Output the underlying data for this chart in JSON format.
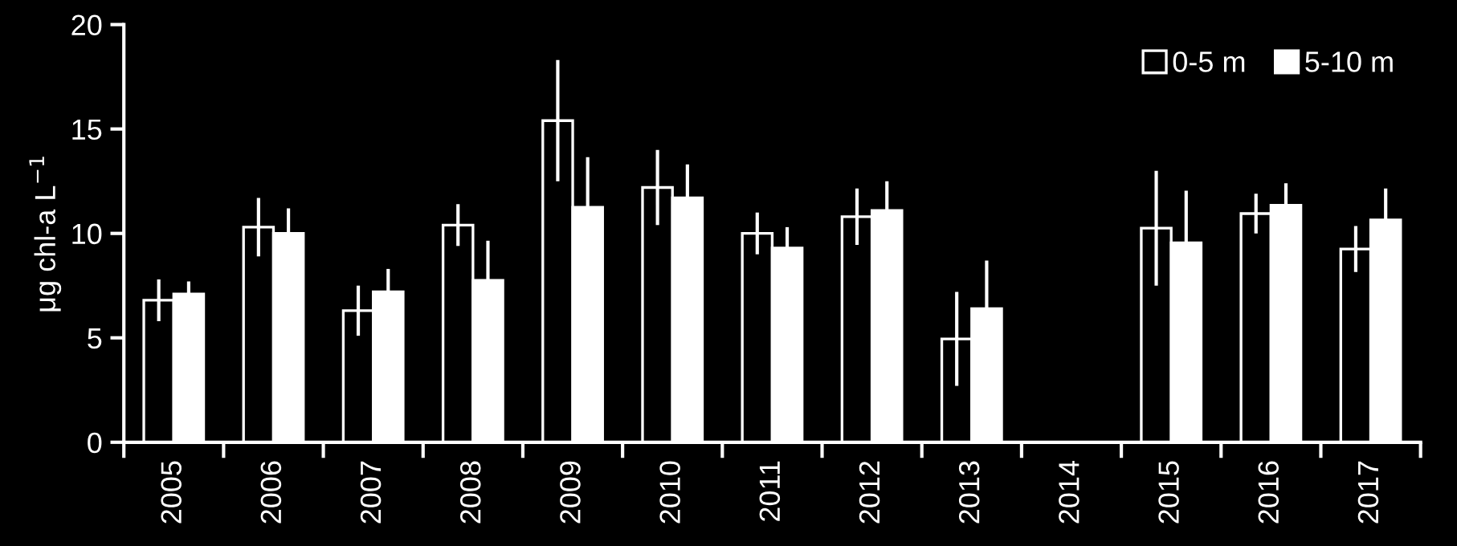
{
  "chart_data": {
    "type": "bar",
    "ylabel": "μg chl-a L$^{−1}$",
    "categories": [
      "2005",
      "2006",
      "2007",
      "2008",
      "2009",
      "2010",
      "2011",
      "2012",
      "2013",
      "2014",
      "2015",
      "2016",
      "2017"
    ],
    "series": [
      {
        "name": "0-5 m",
        "color": "#000000",
        "values": [
          6.8,
          10.3,
          6.3,
          10.4,
          15.4,
          12.2,
          10.0,
          10.8,
          4.95,
          null,
          10.25,
          10.95,
          9.25
        ],
        "errors": [
          1.0,
          1.4,
          1.2,
          1.0,
          2.9,
          1.8,
          1.0,
          1.35,
          2.25,
          null,
          2.75,
          0.95,
          1.1
        ]
      },
      {
        "name": "5-10 m",
        "color": "#ffffff",
        "values": [
          7.1,
          10.0,
          7.2,
          7.75,
          11.25,
          11.7,
          9.3,
          11.1,
          6.4,
          null,
          9.55,
          11.35,
          10.65
        ],
        "errors": [
          0.6,
          1.2,
          1.1,
          1.9,
          2.4,
          1.6,
          1.0,
          1.4,
          2.3,
          null,
          2.5,
          1.05,
          1.5
        ]
      }
    ],
    "ylim": [
      0,
      20
    ],
    "yticks": [
      0,
      5,
      10,
      15,
      20
    ],
    "grid": false,
    "legend": "top right"
  }
}
